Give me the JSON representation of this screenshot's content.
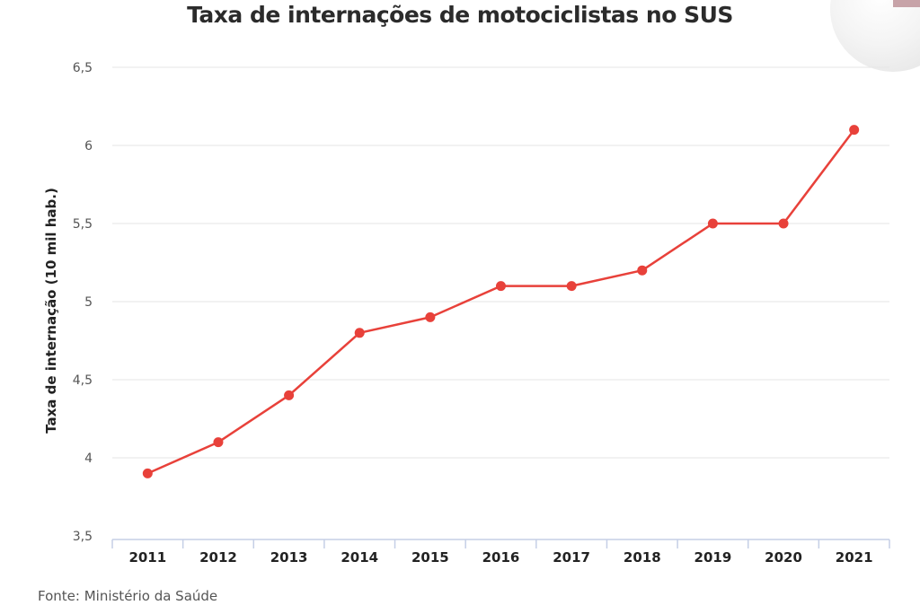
{
  "chart_data": {
    "type": "line",
    "title": "Taxa de internações de motociclistas no SUS",
    "xlabel": "",
    "ylabel": "Taxa de internação (10 mil hab.)",
    "categories": [
      "2011",
      "2012",
      "2013",
      "2014",
      "2015",
      "2016",
      "2017",
      "2018",
      "2019",
      "2020",
      "2021"
    ],
    "values": [
      3.9,
      4.1,
      4.4,
      4.8,
      4.9,
      5.1,
      5.1,
      5.2,
      5.5,
      5.5,
      6.1
    ],
    "ylim": [
      3.5,
      6.5
    ],
    "yticks": [
      3.5,
      4,
      4.5,
      5,
      5.5,
      6,
      6.5
    ],
    "ytick_labels": [
      "3,5",
      "4",
      "4,5",
      "5",
      "5,5",
      "6",
      "6,5"
    ],
    "grid": true,
    "legend": "none",
    "line_color": "#e8413a"
  },
  "source": "Fonte: Ministério da Saúde"
}
